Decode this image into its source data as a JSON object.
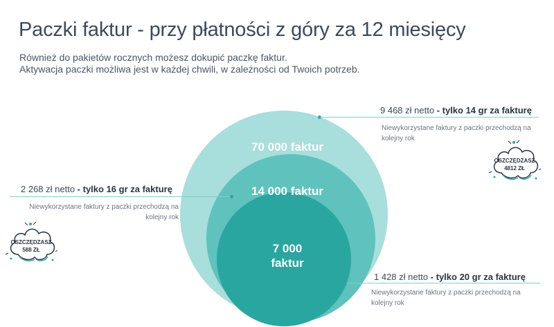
{
  "title": "Paczki faktur - przy płatności z góry za 12 miesięcy",
  "subtitle": {
    "line1": "Również do pakietów rocznych możesz dokupić paczkę faktur.",
    "line2": "Aktywacja paczki możliwa jest w każdej chwili, w zależności od Twoich potrzeb."
  },
  "packages": {
    "large": {
      "label": "70 000 faktur",
      "price": "9 468 zł netto",
      "separator": " - ",
      "per_invoice": "tylko 14 gr za fakturę",
      "note_line1": "Niewykorzystane faktury z paczki przechodzą na",
      "note_line2": "kolejny rok",
      "badge_line1": "OSZCZĘDZASZ",
      "badge_line2": "4812 ZŁ"
    },
    "medium": {
      "label": "14 000 faktur",
      "price": "2 268 zł netto",
      "separator": " - ",
      "per_invoice": "tylko 16 gr za fakturę",
      "note_line1": "Niewykorzystane faktury z paczki przechodzą na",
      "note_line2": "kolejny rok",
      "badge_line1": "OSZCZĘDZASZ",
      "badge_line2": "588 ZŁ"
    },
    "small": {
      "label_line1": "7 000",
      "label_line2": "faktur",
      "price": "1 428 zł netto",
      "separator": " - ",
      "per_invoice": "tylko 20 gr za fakturę",
      "note_line1": "Niewykorzystane faktury z paczki przechodzą na",
      "note_line2": "kolejny rok"
    }
  },
  "colors": {
    "circle_large": "#a8dedb",
    "circle_medium": "#5fc2bd",
    "circle_small": "#2aa6a1",
    "accent": "#2fa6a3"
  },
  "icons": {
    "badge": "cloud-badge-icon"
  }
}
